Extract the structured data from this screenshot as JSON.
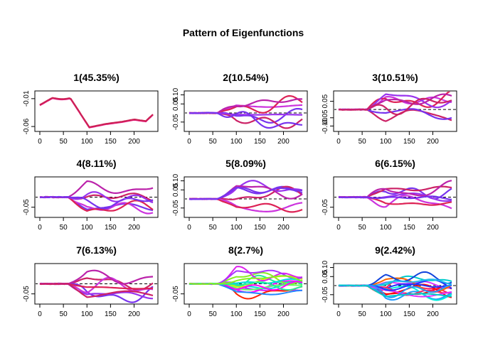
{
  "figure_title": "Pattern of Eigenfunctions",
  "chart_data": [
    {
      "type": "line",
      "title": "1(45.35%)",
      "xlim": [
        0,
        240
      ],
      "ylim": [
        -0.065,
        0.0
      ],
      "x_ticks": [
        0,
        50,
        100,
        150,
        200
      ],
      "y_ticks": [
        -0.06,
        -0.01
      ],
      "y_tick_labels": [
        "-0.06",
        "-0.01"
      ],
      "zero_line": false,
      "colors": [
        "#ee1188",
        "#cc2255"
      ],
      "n_lines": 2,
      "seed": 1
    },
    {
      "type": "line",
      "title": "2(10.54%)",
      "xlim": [
        0,
        240
      ],
      "ylim": [
        -0.09,
        0.11
      ],
      "x_ticks": [
        0,
        50,
        100,
        150,
        200
      ],
      "y_ticks": [
        -0.05,
        0.05,
        0.1
      ],
      "y_tick_labels": [
        "-0.05",
        "0.05",
        "0.10"
      ],
      "zero_line": true,
      "colors": [
        "#7733ee",
        "#cc2266",
        "#cc33dd",
        "#dd2255",
        "#9933ee",
        "#bb22aa"
      ],
      "n_lines": 7,
      "seed": 2
    },
    {
      "type": "line",
      "title": "3(10.51%)",
      "xlim": [
        0,
        240
      ],
      "ylim": [
        -0.12,
        0.1
      ],
      "x_ticks": [
        0,
        50,
        100,
        150,
        200
      ],
      "y_ticks": [
        -0.1,
        -0.05,
        0.05
      ],
      "y_tick_labels": [
        "-0.10",
        "-0.05",
        "0.05"
      ],
      "zero_line": true,
      "colors": [
        "#cc2266",
        "#7733ee",
        "#cc33dd",
        "#dd2255",
        "#9933ee",
        "#bb22aa"
      ],
      "n_lines": 7,
      "seed": 3
    },
    {
      "type": "line",
      "title": "4(8.11%)",
      "xlim": [
        0,
        240
      ],
      "ylim": [
        -0.09,
        0.09
      ],
      "x_ticks": [
        0,
        50,
        100,
        150,
        200
      ],
      "y_ticks": [
        -0.05
      ],
      "y_tick_labels": [
        "-0.05"
      ],
      "zero_line": true,
      "colors": [
        "#7733ee",
        "#cc2266",
        "#cc33dd",
        "#dd2255",
        "#9933ee",
        "#bb22aa"
      ],
      "n_lines": 7,
      "seed": 4
    },
    {
      "type": "line",
      "title": "5(8.09%)",
      "xlim": [
        0,
        240
      ],
      "ylim": [
        -0.09,
        0.11
      ],
      "x_ticks": [
        0,
        50,
        100,
        150,
        200
      ],
      "y_ticks": [
        -0.05,
        0.05,
        0.1
      ],
      "y_tick_labels": [
        "-0.05",
        "0.05",
        "0.10"
      ],
      "zero_line": true,
      "colors": [
        "#7733ee",
        "#cc2266",
        "#cc33dd",
        "#dd2255",
        "#9933ee",
        "#bb22aa"
      ],
      "n_lines": 7,
      "seed": 5
    },
    {
      "type": "line",
      "title": "6(6.15%)",
      "xlim": [
        0,
        240
      ],
      "ylim": [
        -0.09,
        0.09
      ],
      "x_ticks": [
        0,
        50,
        100,
        150,
        200
      ],
      "y_ticks": [
        -0.05
      ],
      "y_tick_labels": [
        "-0.05"
      ],
      "zero_line": true,
      "colors": [
        "#7733ee",
        "#cc2266",
        "#cc33dd",
        "#dd2255",
        "#9933ee",
        "#bb22aa"
      ],
      "n_lines": 7,
      "seed": 6
    },
    {
      "type": "line",
      "title": "7(6.13%)",
      "xlim": [
        0,
        240
      ],
      "ylim": [
        -0.09,
        0.09
      ],
      "x_ticks": [
        0,
        50,
        100,
        150,
        200
      ],
      "y_ticks": [
        -0.05
      ],
      "y_tick_labels": [
        "-0.05"
      ],
      "zero_line": true,
      "colors": [
        "#cc2266",
        "#7733ee",
        "#cc33dd",
        "#dd2255",
        "#9933ee",
        "#bb22aa"
      ],
      "n_lines": 7,
      "seed": 7
    },
    {
      "type": "line",
      "title": "8(2.7%)",
      "xlim": [
        0,
        240
      ],
      "ylim": [
        -0.09,
        0.09
      ],
      "x_ticks": [
        0,
        50,
        100,
        150,
        200
      ],
      "y_ticks": [
        -0.05
      ],
      "y_tick_labels": [
        "-0.05"
      ],
      "zero_line": true,
      "colors": [
        "#ff00ff",
        "#dd22ee",
        "#aa33ff",
        "#00dddd",
        "#22ee99",
        "#88ee22",
        "#ddee00",
        "#ff2200",
        "#2288ff",
        "#66ff66"
      ],
      "n_lines": 16,
      "seed": 8
    },
    {
      "type": "line",
      "title": "9(2.42%)",
      "xlim": [
        0,
        240
      ],
      "ylim": [
        -0.09,
        0.11
      ],
      "x_ticks": [
        0,
        50,
        100,
        150,
        200
      ],
      "y_ticks": [
        -0.05,
        0.05,
        0.1
      ],
      "y_tick_labels": [
        "-0.05",
        "0.05",
        "0.10"
      ],
      "zero_line": true,
      "colors": [
        "#ff0000",
        "#ff2266",
        "#dd33ff",
        "#2233ff",
        "#2299ff",
        "#00cccc",
        "#00eedd",
        "#ff6600",
        "#1144dd",
        "#22bbee"
      ],
      "n_lines": 16,
      "seed": 9
    }
  ]
}
